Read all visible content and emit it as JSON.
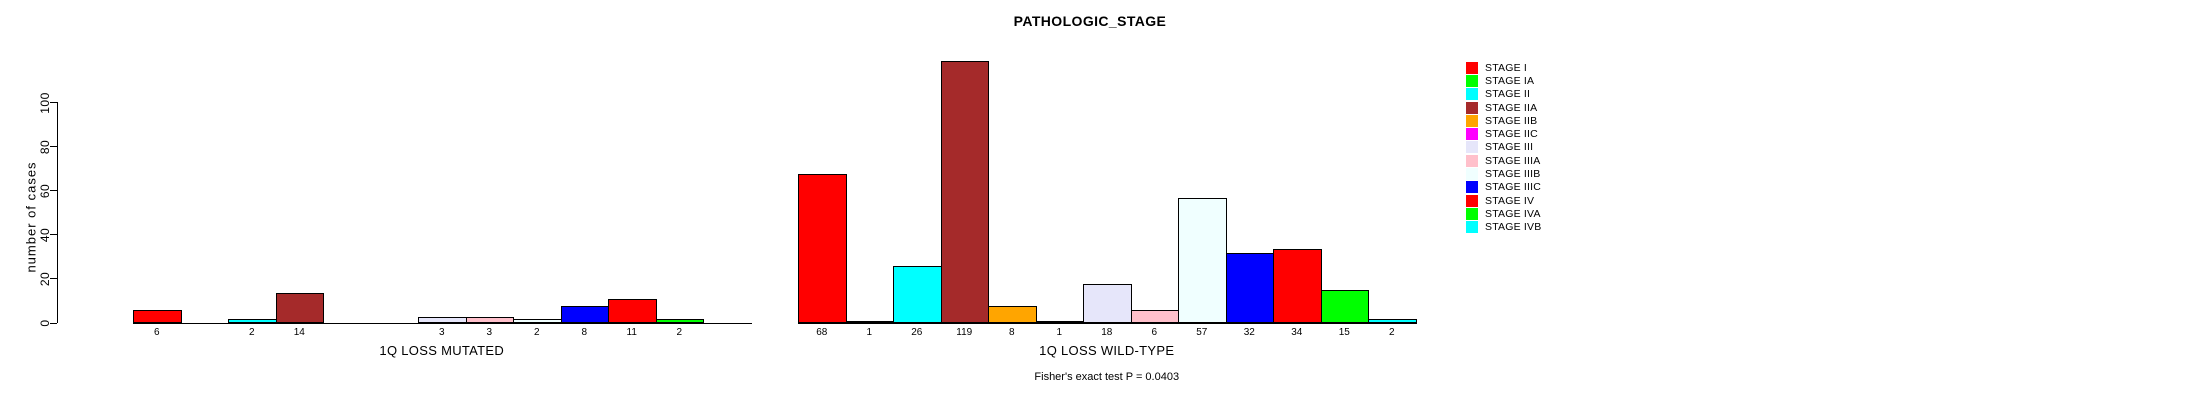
{
  "title": "PATHOLOGIC_STAGE",
  "chart_data": {
    "type": "bar",
    "title": "PATHOLOGIC_STAGE",
    "ylabel": "number of cases",
    "ylim": [
      0,
      120
    ],
    "yticks": [
      0,
      20,
      40,
      60,
      80,
      100
    ],
    "grid": false,
    "legend_position": "right",
    "xlabel_groups": [
      "1Q LOSS MUTATED",
      "1Q LOSS WILD-TYPE"
    ],
    "bar_value_labels_shown": true,
    "series": [
      {
        "name": "STAGE I",
        "color": "#FF0000",
        "values": [
          6,
          68
        ]
      },
      {
        "name": "STAGE IA",
        "color": "#00FF00",
        "values": [
          0,
          1
        ]
      },
      {
        "name": "STAGE II",
        "color": "#00FFFF",
        "values": [
          2,
          26
        ]
      },
      {
        "name": "STAGE IIA",
        "color": "#A52A2A",
        "values": [
          14,
          119
        ]
      },
      {
        "name": "STAGE IIB",
        "color": "#FFA500",
        "values": [
          0,
          8
        ]
      },
      {
        "name": "STAGE IIC",
        "color": "#FF00FF",
        "values": [
          0,
          1
        ]
      },
      {
        "name": "STAGE III",
        "color": "#E6E6FA",
        "values": [
          3,
          18
        ]
      },
      {
        "name": "STAGE IIIA",
        "color": "#FFC0CB",
        "values": [
          3,
          6
        ]
      },
      {
        "name": "STAGE IIIB",
        "color": "#F0FFFF",
        "values": [
          2,
          57
        ]
      },
      {
        "name": "STAGE IIIC",
        "color": "#0000FF",
        "values": [
          8,
          32
        ]
      },
      {
        "name": "STAGE IV",
        "color": "#FF0000",
        "values": [
          11,
          34
        ]
      },
      {
        "name": "STAGE IVA",
        "color": "#00FF00",
        "values": [
          2,
          15
        ]
      },
      {
        "name": "STAGE IVB",
        "color": "#00FFFF",
        "values": [
          0,
          2
        ]
      }
    ],
    "annotation": "Fisher's exact test P = 0.0403"
  }
}
